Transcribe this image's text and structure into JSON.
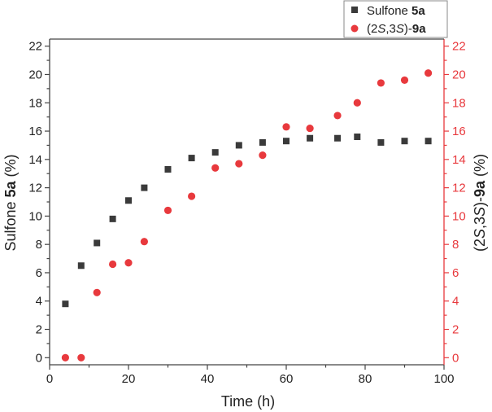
{
  "chart_data": {
    "type": "scatter",
    "title": "",
    "xlabel": "Time (h)",
    "ylabel_left": {
      "prefix": "Sulfone ",
      "bold": "5a",
      "suffix": " (%)"
    },
    "ylabel_right": {
      "open": "(2",
      "i1": "S",
      "mid": ",3",
      "i2": "S",
      "close": ")-",
      "bold": "9a",
      "suffix": " (%)"
    },
    "xlim": [
      0,
      100
    ],
    "ylim_left": [
      -0.5,
      22.5
    ],
    "ylim_right": [
      -0.5,
      22.5
    ],
    "x_ticks": [
      0,
      20,
      40,
      60,
      80,
      100
    ],
    "y_ticks": [
      0,
      2,
      4,
      6,
      8,
      10,
      12,
      14,
      16,
      18,
      20,
      22
    ],
    "legend_position": "top-right",
    "series": [
      {
        "name": "Sulfone 5a",
        "legend": {
          "prefix": "Sulfone ",
          "bold": "5a"
        },
        "marker": "square",
        "color": "#3a3a3a",
        "axis": "left",
        "x": [
          4,
          8,
          12,
          16,
          20,
          24,
          30,
          36,
          42,
          48,
          54,
          60,
          66,
          73,
          78,
          84,
          90,
          96
        ],
        "y": [
          3.8,
          6.5,
          8.1,
          9.8,
          11.1,
          12.0,
          13.3,
          14.1,
          14.5,
          15.0,
          15.2,
          15.3,
          15.5,
          15.5,
          15.6,
          15.2,
          15.3,
          15.3
        ]
      },
      {
        "name": "(2S,3S)-9a",
        "legend": {
          "open": "(2",
          "i1": "S",
          "mid": ",3",
          "i2": "S",
          "close": ")-",
          "bold": "9a"
        },
        "marker": "circle",
        "color": "#e8393d",
        "axis": "right",
        "x": [
          4,
          8,
          12,
          16,
          20,
          24,
          30,
          36,
          42,
          48,
          54,
          60,
          66,
          73,
          78,
          84,
          90,
          96
        ],
        "y": [
          0.0,
          0.0,
          4.6,
          6.6,
          6.7,
          8.2,
          10.4,
          11.4,
          13.4,
          13.7,
          14.3,
          16.3,
          16.2,
          17.1,
          18.0,
          19.4,
          19.6,
          20.1
        ]
      }
    ],
    "colors": {
      "axis": "#444444",
      "right_axis": "#e8393d"
    }
  }
}
